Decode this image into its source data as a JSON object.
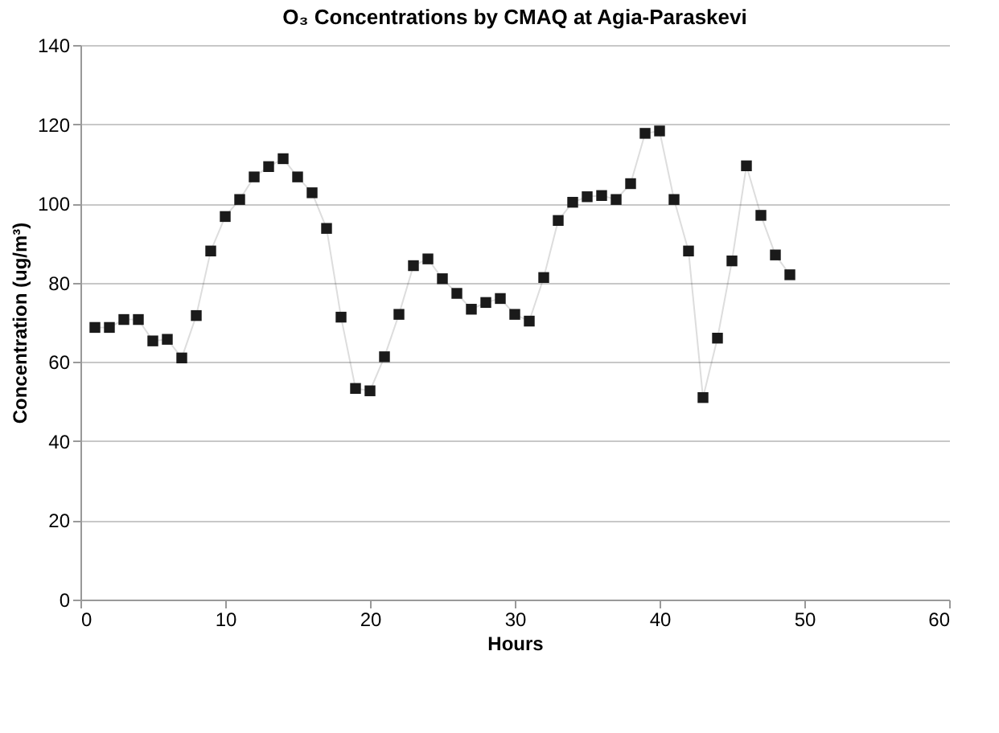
{
  "chart_data": {
    "type": "line",
    "title": "O₃ Concentrations by CMAQ at Agia-Paraskevi",
    "xlabel": "Hours",
    "ylabel": "Concentration (ug/m³)",
    "x": [
      1,
      2,
      3,
      4,
      5,
      6,
      7,
      8,
      9,
      10,
      11,
      12,
      13,
      14,
      15,
      16,
      17,
      18,
      19,
      20,
      21,
      22,
      23,
      24,
      25,
      26,
      27,
      28,
      29,
      30,
      31,
      32,
      33,
      34,
      35,
      36,
      37,
      38,
      39,
      40,
      41,
      42,
      43,
      44,
      45,
      46,
      47,
      48,
      49
    ],
    "series": [
      {
        "color": "#1a1a1a",
        "values": [
          68.7,
          68.7,
          70.7,
          70.7,
          65.3,
          65.7,
          61,
          71.7,
          88,
          96.7,
          101,
          106.7,
          109.3,
          111.3,
          106.7,
          102.7,
          93.7,
          71.3,
          53.3,
          52.7,
          61.3,
          72,
          84.3,
          86,
          81,
          77.3,
          73.3,
          75,
          76,
          72,
          70.3,
          81.3,
          95.7,
          100.3,
          101.7,
          102,
          101,
          105,
          117.7,
          118.3,
          101,
          88,
          51,
          66,
          85.5,
          109.5,
          97,
          87,
          82
        ]
      }
    ],
    "xlim": [
      0,
      60
    ],
    "xticks": [
      0,
      10,
      20,
      30,
      40,
      50,
      60
    ],
    "ylim": [
      0,
      140
    ],
    "yticks": [
      0,
      20,
      40,
      60,
      80,
      100,
      120,
      140
    ],
    "grid": "y",
    "marker": "square",
    "line_style": "solid"
  }
}
